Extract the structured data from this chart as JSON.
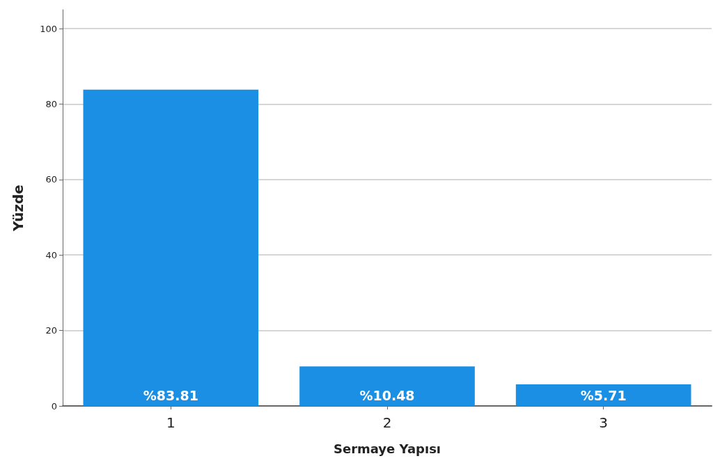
{
  "chart_data": {
    "type": "bar",
    "xlabel": "Sermaye Yapısı",
    "ylabel": "Yüzde",
    "categories": [
      "1",
      "2",
      "3"
    ],
    "values": [
      83.81,
      10.48,
      5.71
    ],
    "value_labels": [
      "%83.81",
      "%10.48",
      "%5.71"
    ],
    "color": "#1a8fe3",
    "ylim": [
      0,
      105
    ],
    "yticks": [
      0,
      20,
      40,
      60,
      80,
      100
    ],
    "grid": "y"
  }
}
